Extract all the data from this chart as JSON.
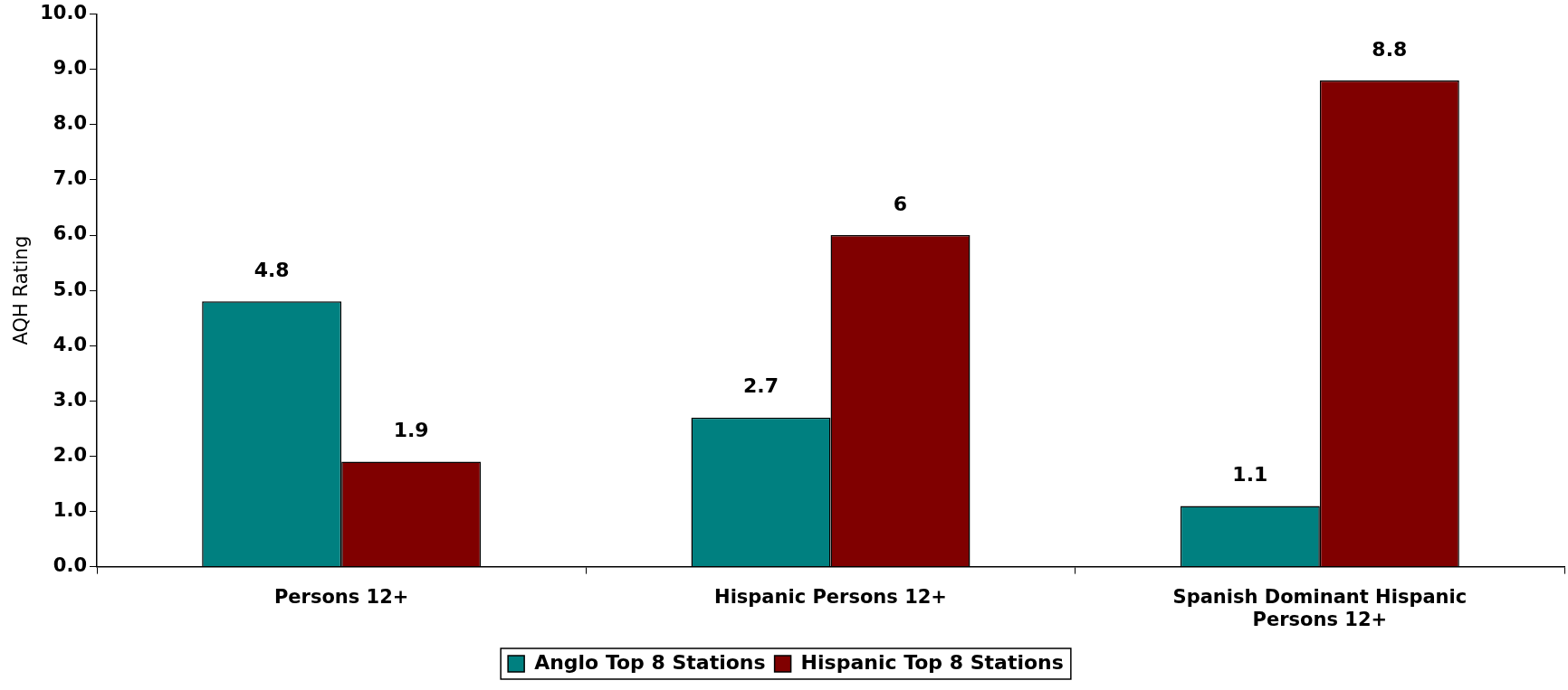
{
  "chart_data": {
    "type": "bar",
    "ylabel": "AQH Rating",
    "categories": [
      "Persons 12+",
      "Hispanic Persons 12+",
      "Spanish Dominant Hispanic Persons 12+"
    ],
    "series": [
      {
        "name": "Anglo Top 8 Stations",
        "color": "#008080",
        "values": [
          4.8,
          2.7,
          1.1
        ]
      },
      {
        "name": "Hispanic Top 8 Stations",
        "color": "#800000",
        "values": [
          1.9,
          6,
          8.8
        ]
      }
    ],
    "ylim": [
      0,
      10
    ],
    "yticks": [
      {
        "value": 0,
        "label": "0.0"
      },
      {
        "value": 1,
        "label": "1.0"
      },
      {
        "value": 2,
        "label": "2.0"
      },
      {
        "value": 3,
        "label": "3.0"
      },
      {
        "value": 4,
        "label": "4.0"
      },
      {
        "value": 5,
        "label": "5.0"
      },
      {
        "value": 6,
        "label": "6.0"
      },
      {
        "value": 7,
        "label": "7.0"
      },
      {
        "value": 8,
        "label": "8.0"
      },
      {
        "value": 9,
        "label": "9.0"
      },
      {
        "value": 10,
        "label": "10.0"
      }
    ],
    "data_labels": true,
    "grid": false,
    "legend": "bottom"
  }
}
